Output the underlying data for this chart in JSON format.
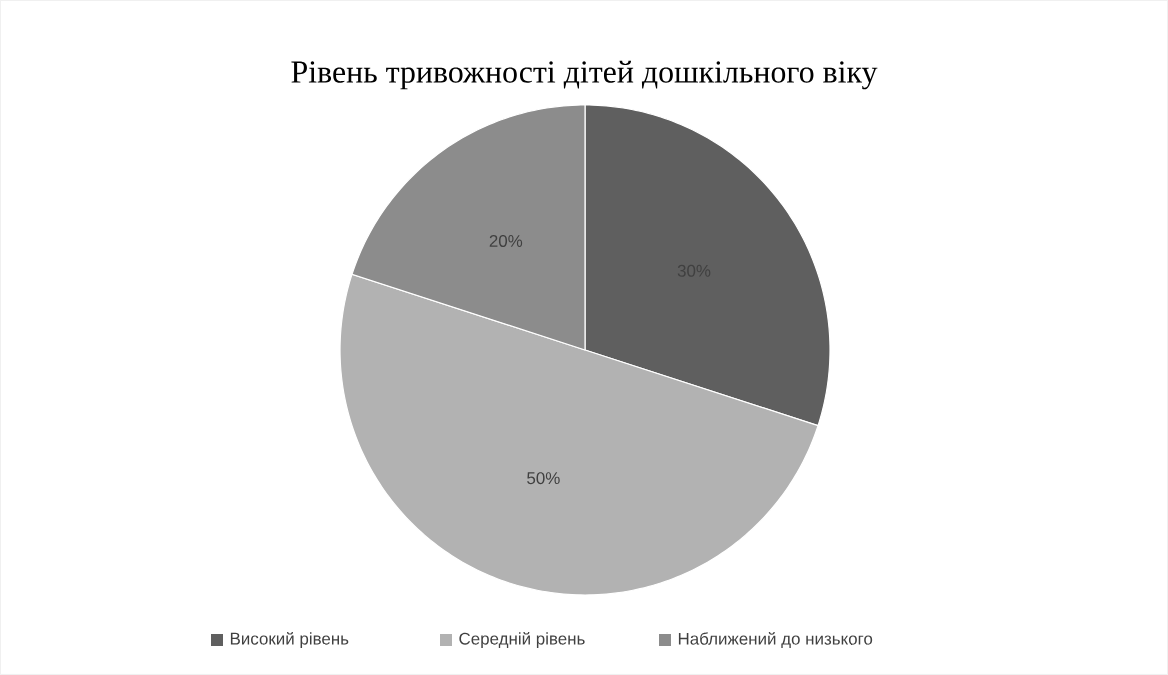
{
  "chart_data": {
    "type": "pie",
    "title": "Рівень тривожності дітей дошкільного віку",
    "categories": [
      "Високий рівень",
      "Середній рівень",
      "Наближений до низького"
    ],
    "values": [
      30,
      50,
      20
    ],
    "colors": [
      "#5f5f5f",
      "#b2b2b2",
      "#8c8c8c"
    ],
    "value_labels": [
      "30%",
      "50%",
      "20%"
    ],
    "legend": "bottom"
  }
}
